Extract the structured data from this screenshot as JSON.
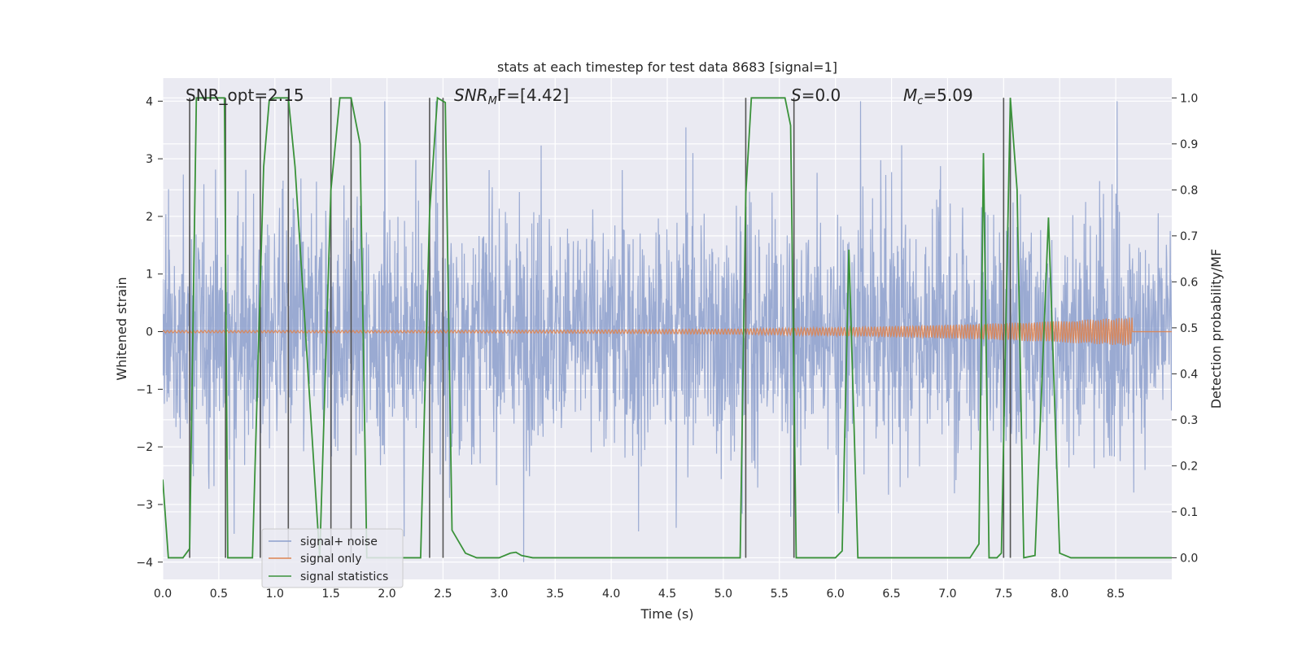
{
  "chart_data": {
    "type": "line",
    "title": "stats at each timestep for test data 8683 [signal=1]",
    "xlabel": "Time (s)",
    "ylabel": "Whitened strain",
    "ylabel_right": "Detection probability/MF",
    "xlim": [
      0,
      9.0
    ],
    "ylim": [
      -4.3,
      4.4
    ],
    "ylim_right": [
      -0.047,
      1.043
    ],
    "x_ticks": [
      0.0,
      0.5,
      1.0,
      1.5,
      2.0,
      2.5,
      3.0,
      3.5,
      4.0,
      4.5,
      5.0,
      5.5,
      6.0,
      6.5,
      7.0,
      7.5,
      8.0,
      8.5
    ],
    "x_tick_labels": [
      "0.0",
      "0.5",
      "1.0",
      "1.5",
      "2.0",
      "2.5",
      "3.0",
      "3.5",
      "4.0",
      "4.5",
      "5.0",
      "5.5",
      "6.0",
      "6.5",
      "7.0",
      "7.5",
      "8.0",
      "8.5"
    ],
    "y_ticks": [
      -4,
      -3,
      -2,
      -1,
      0,
      1,
      2,
      3,
      4
    ],
    "y_tick_labels": [
      "−4",
      "−3",
      "−2",
      "−1",
      "0",
      "1",
      "2",
      "3",
      "4"
    ],
    "y_ticks_right": [
      0.0,
      0.1,
      0.2,
      0.3,
      0.4,
      0.5,
      0.6,
      0.7,
      0.8,
      0.9,
      1.0
    ],
    "y_tick_labels_right": [
      "0.0",
      "0.1",
      "0.2",
      "0.3",
      "0.4",
      "0.5",
      "0.6",
      "0.7",
      "0.8",
      "0.9",
      "1.0"
    ],
    "annotations": [
      {
        "text": "SNR_opt=2.15",
        "x": 0.2,
        "y": 4.1
      },
      {
        "text": "SNR_MF=[4.42]",
        "x": 2.6,
        "y": 4.1
      },
      {
        "text": "S=0.0",
        "x": 5.65,
        "y": 4.1
      },
      {
        "text": "M_c=5.09",
        "x": 6.6,
        "y": 4.1
      }
    ],
    "annotation_display": [
      "SNR_opt=2.15",
      "SNR",
      "M",
      "F=[4.42]",
      "S",
      "=0.0",
      "M",
      "c",
      "=5.09"
    ],
    "legend": {
      "location": "lower-left",
      "entries": [
        {
          "label": "signal+ noise",
          "color": "#8c9fcd"
        },
        {
          "label": "signal only",
          "color": "#dd8452"
        },
        {
          "label": "signal statistics",
          "color": "#3a923a"
        }
      ]
    },
    "series": [
      {
        "name": "signal+ noise",
        "axis": "left",
        "color": "#8c9fcd",
        "envelope": {
          "x_range": [
            0,
            9.0
          ],
          "typical_amplitude": 1.6,
          "max_amplitude": 4.0
        }
      },
      {
        "name": "signal only",
        "axis": "left",
        "color": "#dd8452",
        "chirp": {
          "x_start": 0.0,
          "x_end": 8.65,
          "amplitude_start": 0.02,
          "amplitude_end": 0.25
        }
      },
      {
        "name": "signal statistics",
        "axis": "right",
        "color": "#3a923a",
        "x": [
          0.0,
          0.05,
          0.18,
          0.24,
          0.3,
          0.55,
          0.58,
          0.8,
          0.9,
          0.95,
          1.0,
          1.12,
          1.18,
          1.4,
          1.5,
          1.58,
          1.68,
          1.76,
          1.82,
          2.3,
          2.38,
          2.45,
          2.52,
          2.58,
          2.7,
          2.8,
          3.0,
          3.1,
          3.15,
          3.2,
          3.3,
          5.15,
          5.2,
          5.25,
          5.55,
          5.6,
          5.65,
          6.0,
          6.06,
          6.12,
          6.2,
          7.2,
          7.28,
          7.32,
          7.37,
          7.44,
          7.48,
          7.56,
          7.62,
          7.68,
          7.78,
          7.9,
          8.0,
          8.1,
          9.0
        ],
        "y": [
          0.17,
          0.0,
          0.0,
          0.02,
          1.0,
          1.0,
          0.0,
          0.0,
          0.85,
          0.995,
          1.0,
          1.0,
          0.85,
          0.0,
          0.8,
          1.0,
          1.0,
          0.9,
          0.0,
          0.0,
          0.75,
          1.0,
          0.99,
          0.06,
          0.01,
          0.0,
          0.0,
          0.01,
          0.012,
          0.005,
          0.0,
          0.0,
          0.79,
          1.0,
          1.0,
          0.94,
          0.0,
          0.0,
          0.015,
          0.67,
          0.0,
          0.0,
          0.03,
          0.88,
          0.0,
          0.0,
          0.01,
          1.0,
          0.8,
          0.0,
          0.005,
          0.74,
          0.01,
          0.0,
          0.0
        ]
      }
    ],
    "vertical_markers": [
      0.24,
      0.56,
      0.87,
      1.12,
      1.5,
      1.68,
      2.38,
      2.5,
      5.2,
      5.63,
      7.5,
      7.56
    ]
  }
}
